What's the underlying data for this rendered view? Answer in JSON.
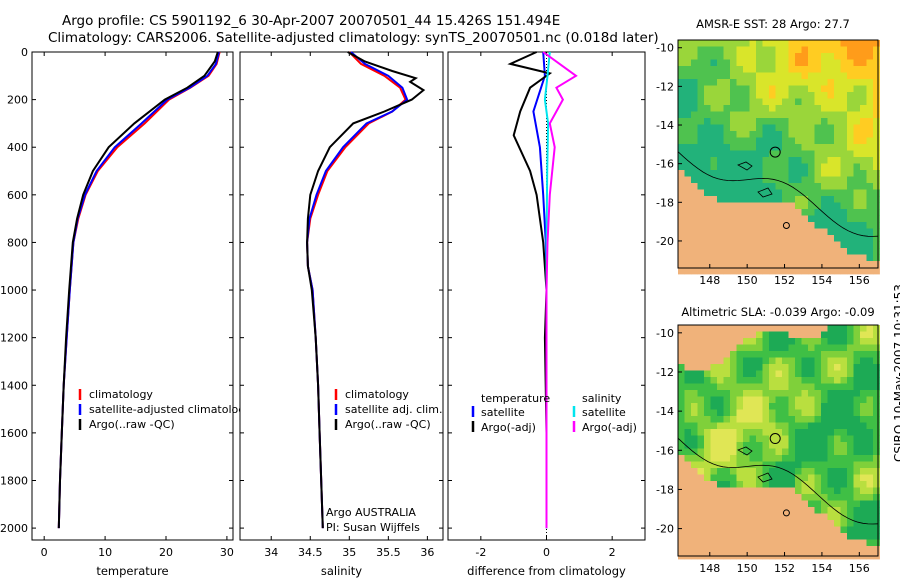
{
  "header": {
    "title_line1": "Argo profile: CS 5901192_6 30-Apr-2007 20070501_44 15.426S 151.494E",
    "title_line2": "Climatology: CARS2006. Satellite-adjusted climatology: synTS_20070501.nc (0.018d later)"
  },
  "colors": {
    "climatology": "#ff0000",
    "satellite": "#0000ff",
    "argo": "#000000",
    "sat_salinity": "#00e5ee",
    "argo_salinity": "#ff00ff",
    "land": "#f0b27a"
  },
  "chart_data": [
    {
      "type": "line",
      "name": "temperature",
      "xlabel": "temperature",
      "ylabel": "",
      "xlim": [
        -2,
        31
      ],
      "ylim": [
        2050,
        0
      ],
      "xticks": [
        "0",
        "10",
        "20",
        "30"
      ],
      "yticks": [
        "0",
        "200",
        "400",
        "600",
        "800",
        "1000",
        "1200",
        "1400",
        "1600",
        "1800",
        "2000"
      ],
      "series": [
        {
          "name": "climatology",
          "color": "#ff0000",
          "points": [
            [
              28.8,
              0
            ],
            [
              28.3,
              50
            ],
            [
              27.0,
              100
            ],
            [
              24.0,
              150
            ],
            [
              20.5,
              200
            ],
            [
              16.5,
              300
            ],
            [
              12.0,
              400
            ],
            [
              8.8,
              500
            ],
            [
              6.8,
              600
            ],
            [
              5.6,
              700
            ],
            [
              4.8,
              800
            ],
            [
              4.2,
              1000
            ],
            [
              3.7,
              1200
            ],
            [
              3.2,
              1400
            ],
            [
              2.9,
              1600
            ],
            [
              2.6,
              1800
            ],
            [
              2.4,
              2000
            ]
          ]
        },
        {
          "name": "satellite-adjusted climatology",
          "color": "#0000ff",
          "points": [
            [
              28.7,
              0
            ],
            [
              28.2,
              50
            ],
            [
              26.8,
              100
            ],
            [
              23.9,
              150
            ],
            [
              20.2,
              200
            ],
            [
              16.0,
              300
            ],
            [
              11.6,
              400
            ],
            [
              8.6,
              500
            ],
            [
              6.7,
              600
            ],
            [
              5.5,
              700
            ],
            [
              4.8,
              800
            ],
            [
              4.2,
              1000
            ],
            [
              3.7,
              1200
            ],
            [
              3.2,
              1400
            ],
            [
              2.9,
              1600
            ],
            [
              2.6,
              1800
            ],
            [
              2.4,
              2000
            ]
          ]
        },
        {
          "name": "Argo(..raw -QC)",
          "color": "#000000",
          "points": [
            [
              28.5,
              0
            ],
            [
              28.0,
              40
            ],
            [
              26.3,
              100
            ],
            [
              23.5,
              150
            ],
            [
              19.8,
              200
            ],
            [
              14.8,
              300
            ],
            [
              10.6,
              400
            ],
            [
              8.0,
              500
            ],
            [
              6.4,
              600
            ],
            [
              5.4,
              700
            ],
            [
              4.7,
              800
            ],
            [
              4.1,
              1000
            ],
            [
              3.6,
              1200
            ],
            [
              3.2,
              1400
            ],
            [
              2.9,
              1600
            ],
            [
              2.6,
              1800
            ],
            [
              2.4,
              2000
            ]
          ]
        }
      ],
      "legend": [
        "climatology",
        "satellite-adjusted climatology",
        "Argo(..raw -QC)"
      ],
      "legend_position": "bottom-right"
    },
    {
      "type": "line",
      "name": "salinity",
      "xlabel": "salinity",
      "xlim": [
        33.6,
        36.2
      ],
      "ylim": [
        2050,
        0
      ],
      "xticks": [
        "34",
        "34.5",
        "35",
        "35.5",
        "36"
      ],
      "series": [
        {
          "name": "climatology",
          "color": "#ff0000",
          "points": [
            [
              35.0,
              0
            ],
            [
              35.15,
              50
            ],
            [
              35.45,
              100
            ],
            [
              35.65,
              150
            ],
            [
              35.72,
              200
            ],
            [
              35.55,
              250
            ],
            [
              35.25,
              300
            ],
            [
              34.95,
              400
            ],
            [
              34.72,
              500
            ],
            [
              34.6,
              600
            ],
            [
              34.5,
              700
            ],
            [
              34.46,
              800
            ],
            [
              34.47,
              900
            ],
            [
              34.53,
              1000
            ],
            [
              34.57,
              1200
            ],
            [
              34.6,
              1400
            ],
            [
              34.62,
              1600
            ],
            [
              34.64,
              1800
            ],
            [
              34.66,
              2000
            ]
          ]
        },
        {
          "name": "satellite adj. clim.",
          "color": "#0000ff",
          "points": [
            [
              35.02,
              0
            ],
            [
              35.2,
              50
            ],
            [
              35.5,
              100
            ],
            [
              35.68,
              150
            ],
            [
              35.74,
              200
            ],
            [
              35.55,
              250
            ],
            [
              35.22,
              300
            ],
            [
              34.92,
              400
            ],
            [
              34.7,
              500
            ],
            [
              34.58,
              600
            ],
            [
              34.49,
              700
            ],
            [
              34.46,
              800
            ],
            [
              34.47,
              900
            ],
            [
              34.53,
              1000
            ],
            [
              34.57,
              1200
            ],
            [
              34.6,
              1400
            ],
            [
              34.62,
              1600
            ],
            [
              34.64,
              1800
            ],
            [
              34.66,
              2000
            ]
          ]
        },
        {
          "name": "Argo(..raw -QC)",
          "color": "#000000",
          "points": [
            [
              34.98,
              0
            ],
            [
              35.2,
              40
            ],
            [
              35.55,
              80
            ],
            [
              35.85,
              110
            ],
            [
              35.78,
              125
            ],
            [
              35.95,
              160
            ],
            [
              35.8,
              200
            ],
            [
              35.45,
              250
            ],
            [
              35.05,
              300
            ],
            [
              34.75,
              400
            ],
            [
              34.6,
              500
            ],
            [
              34.5,
              600
            ],
            [
              34.47,
              700
            ],
            [
              34.46,
              800
            ],
            [
              34.47,
              900
            ],
            [
              34.52,
              1000
            ],
            [
              34.57,
              1200
            ],
            [
              34.6,
              1400
            ],
            [
              34.62,
              1600
            ],
            [
              34.64,
              1800
            ],
            [
              34.66,
              2000
            ]
          ]
        }
      ],
      "legend": [
        "climatology",
        "satellite adj. clim.",
        "Argo(..raw -QC)"
      ],
      "annotation": [
        "Argo AUSTRALIA",
        "PI: Susan Wijffels"
      ]
    },
    {
      "type": "line",
      "name": "difference",
      "xlabel": "difference from climatology",
      "xlim": [
        -3,
        3
      ],
      "ylim": [
        2050,
        0
      ],
      "xticks": [
        "-2",
        "0",
        "2"
      ],
      "series": [
        {
          "name": "satellite (temperature)",
          "color": "#0000ff",
          "points": [
            [
              -0.1,
              0
            ],
            [
              -0.05,
              100
            ],
            [
              -0.4,
              250
            ],
            [
              -0.2,
              400
            ],
            [
              -0.1,
              600
            ],
            [
              -0.02,
              800
            ],
            [
              0,
              1000
            ],
            [
              0,
              2000
            ]
          ]
        },
        {
          "name": "Argo(-adj) (temperature)",
          "color": "#000000",
          "points": [
            [
              -0.3,
              0
            ],
            [
              -1.1,
              50
            ],
            [
              0.1,
              90
            ],
            [
              -0.5,
              150
            ],
            [
              -0.8,
              250
            ],
            [
              -1.0,
              350
            ],
            [
              -0.5,
              500
            ],
            [
              -0.3,
              600
            ],
            [
              -0.1,
              800
            ],
            [
              0,
              1000
            ],
            [
              -0.05,
              1200
            ],
            [
              0,
              1600
            ],
            [
              0,
              2000
            ]
          ]
        },
        {
          "name": "satellite (salinity)",
          "color": "#00e5ee",
          "points": [
            [
              0.1,
              0
            ],
            [
              0.03,
              100
            ],
            [
              -0.05,
              200
            ],
            [
              0.05,
              300
            ],
            [
              0.02,
              500
            ],
            [
              0,
              800
            ],
            [
              0,
              2000
            ]
          ]
        },
        {
          "name": "Argo(-adj) (salinity)",
          "color": "#ff00ff",
          "points": [
            [
              -0.1,
              0
            ],
            [
              0.5,
              60
            ],
            [
              0.9,
              100
            ],
            [
              0.3,
              150
            ],
            [
              0.5,
              200
            ],
            [
              0.1,
              300
            ],
            [
              0.25,
              400
            ],
            [
              0.1,
              600
            ],
            [
              0.03,
              800
            ],
            [
              0,
              1000
            ],
            [
              0,
              2000
            ]
          ]
        }
      ],
      "legend_temperature": {
        "title": "temperature",
        "items": [
          "satellite",
          "Argo(-adj)"
        ]
      },
      "legend_salinity": {
        "title": "salinity",
        "items": [
          "satellite",
          "Argo(-adj)"
        ]
      }
    }
  ],
  "maps": [
    {
      "title": "AMSR-E SST: 28 Argo: 27.7",
      "kind": "sst",
      "lon_range": [
        146.3,
        157
      ],
      "lat_range": [
        -21.4,
        -9.6
      ],
      "xticks": [
        "148",
        "150",
        "152",
        "154",
        "156"
      ],
      "yticks": [
        "-10",
        "-12",
        "-14",
        "-16",
        "-18",
        "-20"
      ],
      "profile_marker": [
        151.5,
        -15.4
      ]
    },
    {
      "title": "Altimetric SLA: -0.039 Argo: -0.09",
      "kind": "sla",
      "lon_range": [
        146.3,
        157
      ],
      "lat_range": [
        -21.4,
        -9.6
      ],
      "xticks": [
        "148",
        "150",
        "152",
        "154",
        "156"
      ],
      "yticks": [
        "-10",
        "-12",
        "-14",
        "-16",
        "-18",
        "-20"
      ],
      "profile_marker": [
        151.5,
        -15.4
      ]
    }
  ],
  "footer": {
    "stamp": "CSIRO 10-May-2007 10:31:53"
  }
}
